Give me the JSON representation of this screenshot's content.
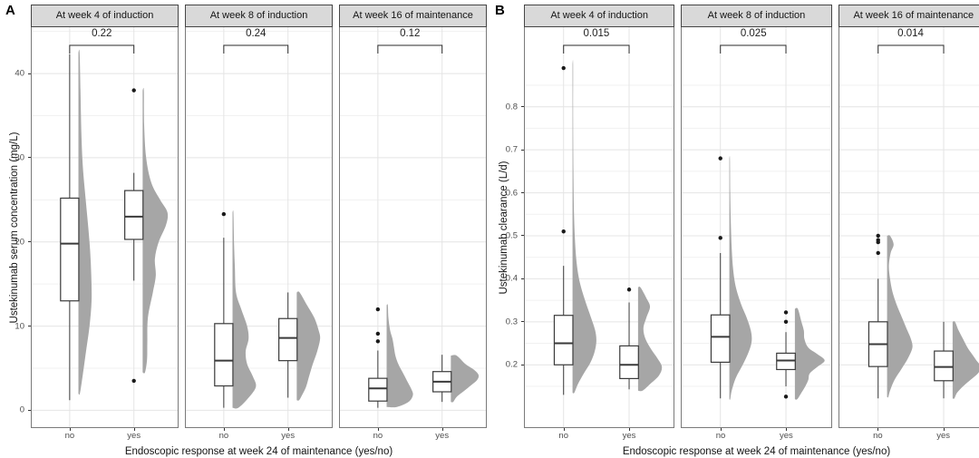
{
  "figure": {
    "x_tick_labels": [
      "no",
      "yes"
    ]
  },
  "style": {
    "background": "#ffffff",
    "strip_bg": "#d9d9d9",
    "strip_border": "#454545",
    "panel_border": "#7a7a7a",
    "grid_major": "#e4e4e4",
    "grid_minor": "#f1f1f1",
    "violin_fill": "#a6a6a6",
    "box_stroke": "#3a3a3a",
    "box_fill": "#ffffff",
    "outlier_color": "#1a1a1a",
    "bracket_color": "#2b2b2b",
    "text_color": "#141414",
    "tick_label_color": "#4d4d4d"
  },
  "chart_data": [
    {
      "type": "raincloud-boxplot",
      "panel": "A",
      "ylabel": "Ustekinumab serum concentration (mg/L)",
      "xlabel": "Endoscopic response at week 24 of maintenance (yes/no)",
      "x_tick_labels": [
        "no",
        "yes"
      ],
      "yticks": [
        0,
        10,
        20,
        30,
        40
      ],
      "ytick_labels": [
        "0",
        "10",
        "20",
        "30",
        "40"
      ],
      "ylim": [
        -2,
        45.5
      ],
      "legend": "none",
      "facets": [
        {
          "label": "At week 4 of induction",
          "p_value": "0.22",
          "groups": [
            {
              "category": "no",
              "box": {
                "low": 1.2,
                "q1": 13.0,
                "median": 19.8,
                "q3": 25.2,
                "high": 42.3
              },
              "outliers": [],
              "violin": [
                [
                  42.5,
                  0.04
                ],
                [
                  38,
                  0.07
                ],
                [
                  33,
                  0.1
                ],
                [
                  29,
                  0.15
                ],
                [
                  25,
                  0.25
                ],
                [
                  22,
                  0.33
                ],
                [
                  19,
                  0.4
                ],
                [
                  16,
                  0.44
                ],
                [
                  13,
                  0.45
                ],
                [
                  10,
                  0.38
                ],
                [
                  7,
                  0.26
                ],
                [
                  4,
                  0.14
                ],
                [
                  2,
                  0.05
                ]
              ]
            },
            {
              "category": "yes",
              "box": {
                "low": 15.4,
                "q1": 20.3,
                "median": 23.0,
                "q3": 26.1,
                "high": 28.2
              },
              "outliers": [
                38,
                3.5
              ],
              "violin": [
                [
                  38,
                  0.04
                ],
                [
                  34,
                  0.05
                ],
                [
                  30,
                  0.12
                ],
                [
                  27,
                  0.3
                ],
                [
                  25,
                  0.6
                ],
                [
                  23.5,
                  0.85
                ],
                [
                  22,
                  0.8
                ],
                [
                  20,
                  0.55
                ],
                [
                  18,
                  0.42
                ],
                [
                  16,
                  0.45
                ],
                [
                  14,
                  0.35
                ],
                [
                  11,
                  0.18
                ],
                [
                  8,
                  0.16
                ],
                [
                  6,
                  0.15
                ],
                [
                  4.5,
                  0.08
                ]
              ]
            }
          ]
        },
        {
          "label": "At week 8 of induction",
          "p_value": "0.24",
          "groups": [
            {
              "category": "no",
              "box": {
                "low": 0.3,
                "q1": 2.9,
                "median": 5.9,
                "q3": 10.3,
                "high": 20.5
              },
              "outliers": [
                23.3
              ],
              "violin": [
                [
                  23.5,
                  0.03
                ],
                [
                  20,
                  0.05
                ],
                [
                  17,
                  0.08
                ],
                [
                  14,
                  0.12
                ],
                [
                  12,
                  0.3
                ],
                [
                  10,
                  0.5
                ],
                [
                  8.5,
                  0.55
                ],
                [
                  7,
                  0.45
                ],
                [
                  5.5,
                  0.5
                ],
                [
                  4,
                  0.7
                ],
                [
                  2.8,
                  0.8
                ],
                [
                  1.5,
                  0.55
                ],
                [
                  0.3,
                  0.2
                ]
              ]
            },
            {
              "category": "yes",
              "box": {
                "low": 1.5,
                "q1": 5.9,
                "median": 8.6,
                "q3": 10.9,
                "high": 14.0
              },
              "outliers": [],
              "violin": [
                [
                  14,
                  0.1
                ],
                [
                  12.5,
                  0.35
                ],
                [
                  11,
                  0.6
                ],
                [
                  9.5,
                  0.75
                ],
                [
                  8.5,
                  0.8
                ],
                [
                  7,
                  0.7
                ],
                [
                  5.5,
                  0.55
                ],
                [
                  4,
                  0.42
                ],
                [
                  2.8,
                  0.32
                ],
                [
                  1.8,
                  0.18
                ],
                [
                  1.2,
                  0.08
                ]
              ]
            }
          ]
        },
        {
          "label": "At week 16 of maintenance",
          "p_value": "0.12",
          "groups": [
            {
              "category": "no",
              "box": {
                "low": 0.3,
                "q1": 1.1,
                "median": 2.6,
                "q3": 3.8,
                "high": 7.1
              },
              "outliers": [
                12.0,
                9.1,
                8.2
              ],
              "violin": [
                [
                  12.5,
                  0.04
                ],
                [
                  11,
                  0.06
                ],
                [
                  9.5,
                  0.12
                ],
                [
                  8.5,
                  0.2
                ],
                [
                  7.5,
                  0.25
                ],
                [
                  6.5,
                  0.3
                ],
                [
                  5.5,
                  0.4
                ],
                [
                  4.5,
                  0.55
                ],
                [
                  3.5,
                  0.7
                ],
                [
                  2.5,
                  0.85
                ],
                [
                  1.8,
                  0.9
                ],
                [
                  1,
                  0.75
                ],
                [
                  0.4,
                  0.35
                ]
              ]
            },
            {
              "category": "yes",
              "box": {
                "low": 1.0,
                "q1": 2.2,
                "median": 3.4,
                "q3": 4.6,
                "high": 6.6
              },
              "outliers": [],
              "violin": [
                [
                  6.5,
                  0.2
                ],
                [
                  5.5,
                  0.5
                ],
                [
                  4.8,
                  0.8
                ],
                [
                  4.2,
                  0.95
                ],
                [
                  3.6,
                  0.9
                ],
                [
                  3,
                  0.7
                ],
                [
                  2.3,
                  0.45
                ],
                [
                  1.6,
                  0.2
                ],
                [
                  1,
                  0.08
                ]
              ]
            }
          ]
        }
      ]
    },
    {
      "type": "raincloud-boxplot",
      "panel": "B",
      "ylabel": "Ustekinumab clearance (L/d)",
      "xlabel": "Endoscopic response at week 24 of maintenance (yes/no)",
      "x_tick_labels": [
        "no",
        "yes"
      ],
      "yticks": [
        0.2,
        0.3,
        0.4,
        0.5,
        0.6,
        0.7,
        0.8
      ],
      "ytick_labels": [
        "0.2",
        "0.3",
        "0.4",
        "0.5",
        "0.6",
        "0.7",
        "0.8"
      ],
      "ylim": [
        0.055,
        0.985
      ],
      "legend": "none",
      "facets": [
        {
          "label": "At week 4 of induction",
          "p_value": "0.015",
          "groups": [
            {
              "category": "no",
              "box": {
                "low": 0.13,
                "q1": 0.2,
                "median": 0.25,
                "q3": 0.315,
                "high": 0.43
              },
              "outliers": [
                0.89,
                0.51
              ],
              "violin": [
                [
                  0.9,
                  0.02
                ],
                [
                  0.78,
                  0.02
                ],
                [
                  0.65,
                  0.03
                ],
                [
                  0.55,
                  0.05
                ],
                [
                  0.48,
                  0.09
                ],
                [
                  0.43,
                  0.15
                ],
                [
                  0.39,
                  0.25
                ],
                [
                  0.35,
                  0.42
                ],
                [
                  0.31,
                  0.62
                ],
                [
                  0.28,
                  0.76
                ],
                [
                  0.255,
                  0.8
                ],
                [
                  0.23,
                  0.74
                ],
                [
                  0.205,
                  0.6
                ],
                [
                  0.18,
                  0.38
                ],
                [
                  0.155,
                  0.18
                ],
                [
                  0.135,
                  0.06
                ]
              ]
            },
            {
              "category": "yes",
              "box": {
                "low": 0.143,
                "q1": 0.168,
                "median": 0.2,
                "q3": 0.244,
                "high": 0.345
              },
              "outliers": [
                0.375
              ],
              "violin": [
                [
                  0.38,
                  0.08
                ],
                [
                  0.355,
                  0.28
                ],
                [
                  0.335,
                  0.4
                ],
                [
                  0.31,
                  0.28
                ],
                [
                  0.285,
                  0.18
                ],
                [
                  0.26,
                  0.25
                ],
                [
                  0.235,
                  0.45
                ],
                [
                  0.215,
                  0.65
                ],
                [
                  0.195,
                  0.8
                ],
                [
                  0.175,
                  0.7
                ],
                [
                  0.155,
                  0.4
                ],
                [
                  0.14,
                  0.15
                ]
              ]
            }
          ]
        },
        {
          "label": "At week 8 of induction",
          "p_value": "0.025",
          "groups": [
            {
              "category": "no",
              "box": {
                "low": 0.122,
                "q1": 0.206,
                "median": 0.265,
                "q3": 0.316,
                "high": 0.46
              },
              "outliers": [
                0.68,
                0.495
              ],
              "violin": [
                [
                  0.68,
                  0.02
                ],
                [
                  0.6,
                  0.03
                ],
                [
                  0.53,
                  0.05
                ],
                [
                  0.47,
                  0.08
                ],
                [
                  0.42,
                  0.13
                ],
                [
                  0.38,
                  0.22
                ],
                [
                  0.34,
                  0.4
                ],
                [
                  0.31,
                  0.58
                ],
                [
                  0.28,
                  0.72
                ],
                [
                  0.255,
                  0.75
                ],
                [
                  0.23,
                  0.65
                ],
                [
                  0.2,
                  0.45
                ],
                [
                  0.17,
                  0.22
                ],
                [
                  0.14,
                  0.08
                ],
                [
                  0.12,
                  0.03
                ]
              ]
            },
            {
              "category": "yes",
              "box": {
                "low": 0.15,
                "q1": 0.189,
                "median": 0.21,
                "q3": 0.227,
                "high": 0.276
              },
              "outliers": [
                0.322,
                0.3,
                0.126
              ],
              "violin": [
                [
                  0.33,
                  0.1
                ],
                [
                  0.3,
                  0.22
                ],
                [
                  0.28,
                  0.3
                ],
                [
                  0.26,
                  0.32
                ],
                [
                  0.24,
                  0.45
                ],
                [
                  0.225,
                  0.75
                ],
                [
                  0.21,
                  1.0
                ],
                [
                  0.195,
                  0.75
                ],
                [
                  0.18,
                  0.5
                ],
                [
                  0.165,
                  0.45
                ],
                [
                  0.15,
                  0.35
                ],
                [
                  0.135,
                  0.22
                ],
                [
                  0.12,
                  0.08
                ]
              ]
            }
          ]
        },
        {
          "label": "At week 16 of maintenance",
          "p_value": "0.014",
          "groups": [
            {
              "category": "no",
              "box": {
                "low": 0.122,
                "q1": 0.196,
                "median": 0.248,
                "q3": 0.3,
                "high": 0.4
              },
              "outliers": [
                0.5,
                0.49,
                0.485,
                0.46
              ],
              "violin": [
                [
                  0.5,
                  0.1
                ],
                [
                  0.48,
                  0.22
                ],
                [
                  0.46,
                  0.12
                ],
                [
                  0.43,
                  0.06
                ],
                [
                  0.4,
                  0.1
                ],
                [
                  0.37,
                  0.18
                ],
                [
                  0.34,
                  0.32
                ],
                [
                  0.31,
                  0.5
                ],
                [
                  0.28,
                  0.68
                ],
                [
                  0.26,
                  0.8
                ],
                [
                  0.24,
                  0.85
                ],
                [
                  0.215,
                  0.7
                ],
                [
                  0.19,
                  0.48
                ],
                [
                  0.165,
                  0.25
                ],
                [
                  0.14,
                  0.1
                ],
                [
                  0.125,
                  0.04
                ]
              ]
            },
            {
              "category": "yes",
              "box": {
                "low": 0.122,
                "q1": 0.163,
                "median": 0.195,
                "q3": 0.232,
                "high": 0.3
              },
              "outliers": [],
              "violin": [
                [
                  0.3,
                  0.08
                ],
                [
                  0.28,
                  0.2
                ],
                [
                  0.26,
                  0.35
                ],
                [
                  0.24,
                  0.5
                ],
                [
                  0.225,
                  0.65
                ],
                [
                  0.21,
                  0.8
                ],
                [
                  0.195,
                  0.95
                ],
                [
                  0.18,
                  0.85
                ],
                [
                  0.165,
                  0.6
                ],
                [
                  0.15,
                  0.35
                ],
                [
                  0.135,
                  0.15
                ],
                [
                  0.122,
                  0.06
                ]
              ]
            }
          ]
        }
      ]
    }
  ]
}
